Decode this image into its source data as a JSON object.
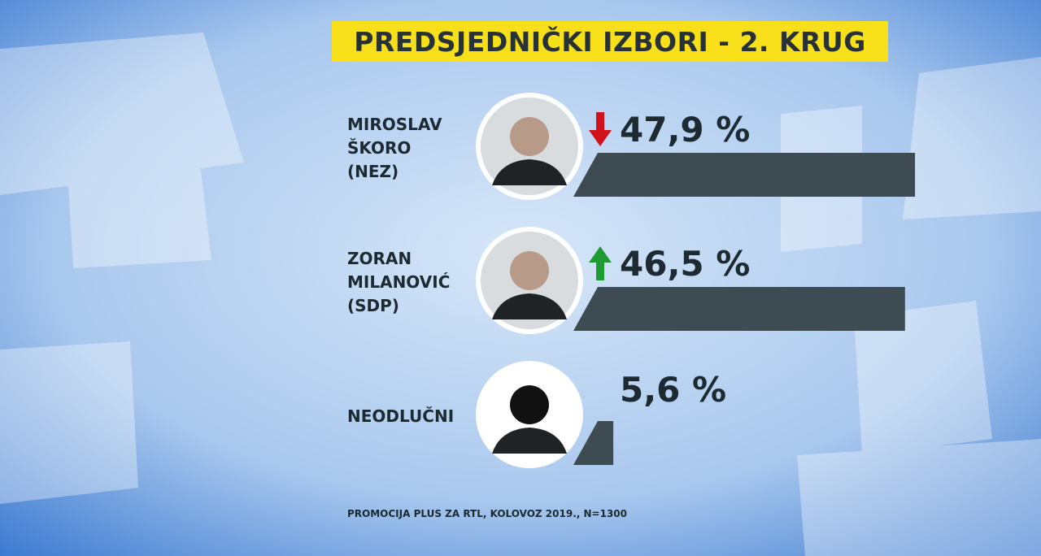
{
  "chart_data": {
    "type": "bar",
    "orientation": "horizontal",
    "title": "PREDSJEDNIČKI IZBORI - 2. KRUG",
    "categories": [
      "MIROSLAV ŠKORO (NEZ)",
      "ZORAN MILANOVIĆ (SDP)",
      "NEODLUČNI"
    ],
    "values": [
      47.9,
      46.5,
      5.6
    ],
    "value_labels": [
      "47,9 %",
      "46,5 %",
      "5,6 %"
    ],
    "trend": [
      "down",
      "up",
      null
    ],
    "color": "#3e4b52",
    "source": "PROMOCIJA PLUS ZA RTL, KOLOVOZ 2019., N=1300"
  }
}
